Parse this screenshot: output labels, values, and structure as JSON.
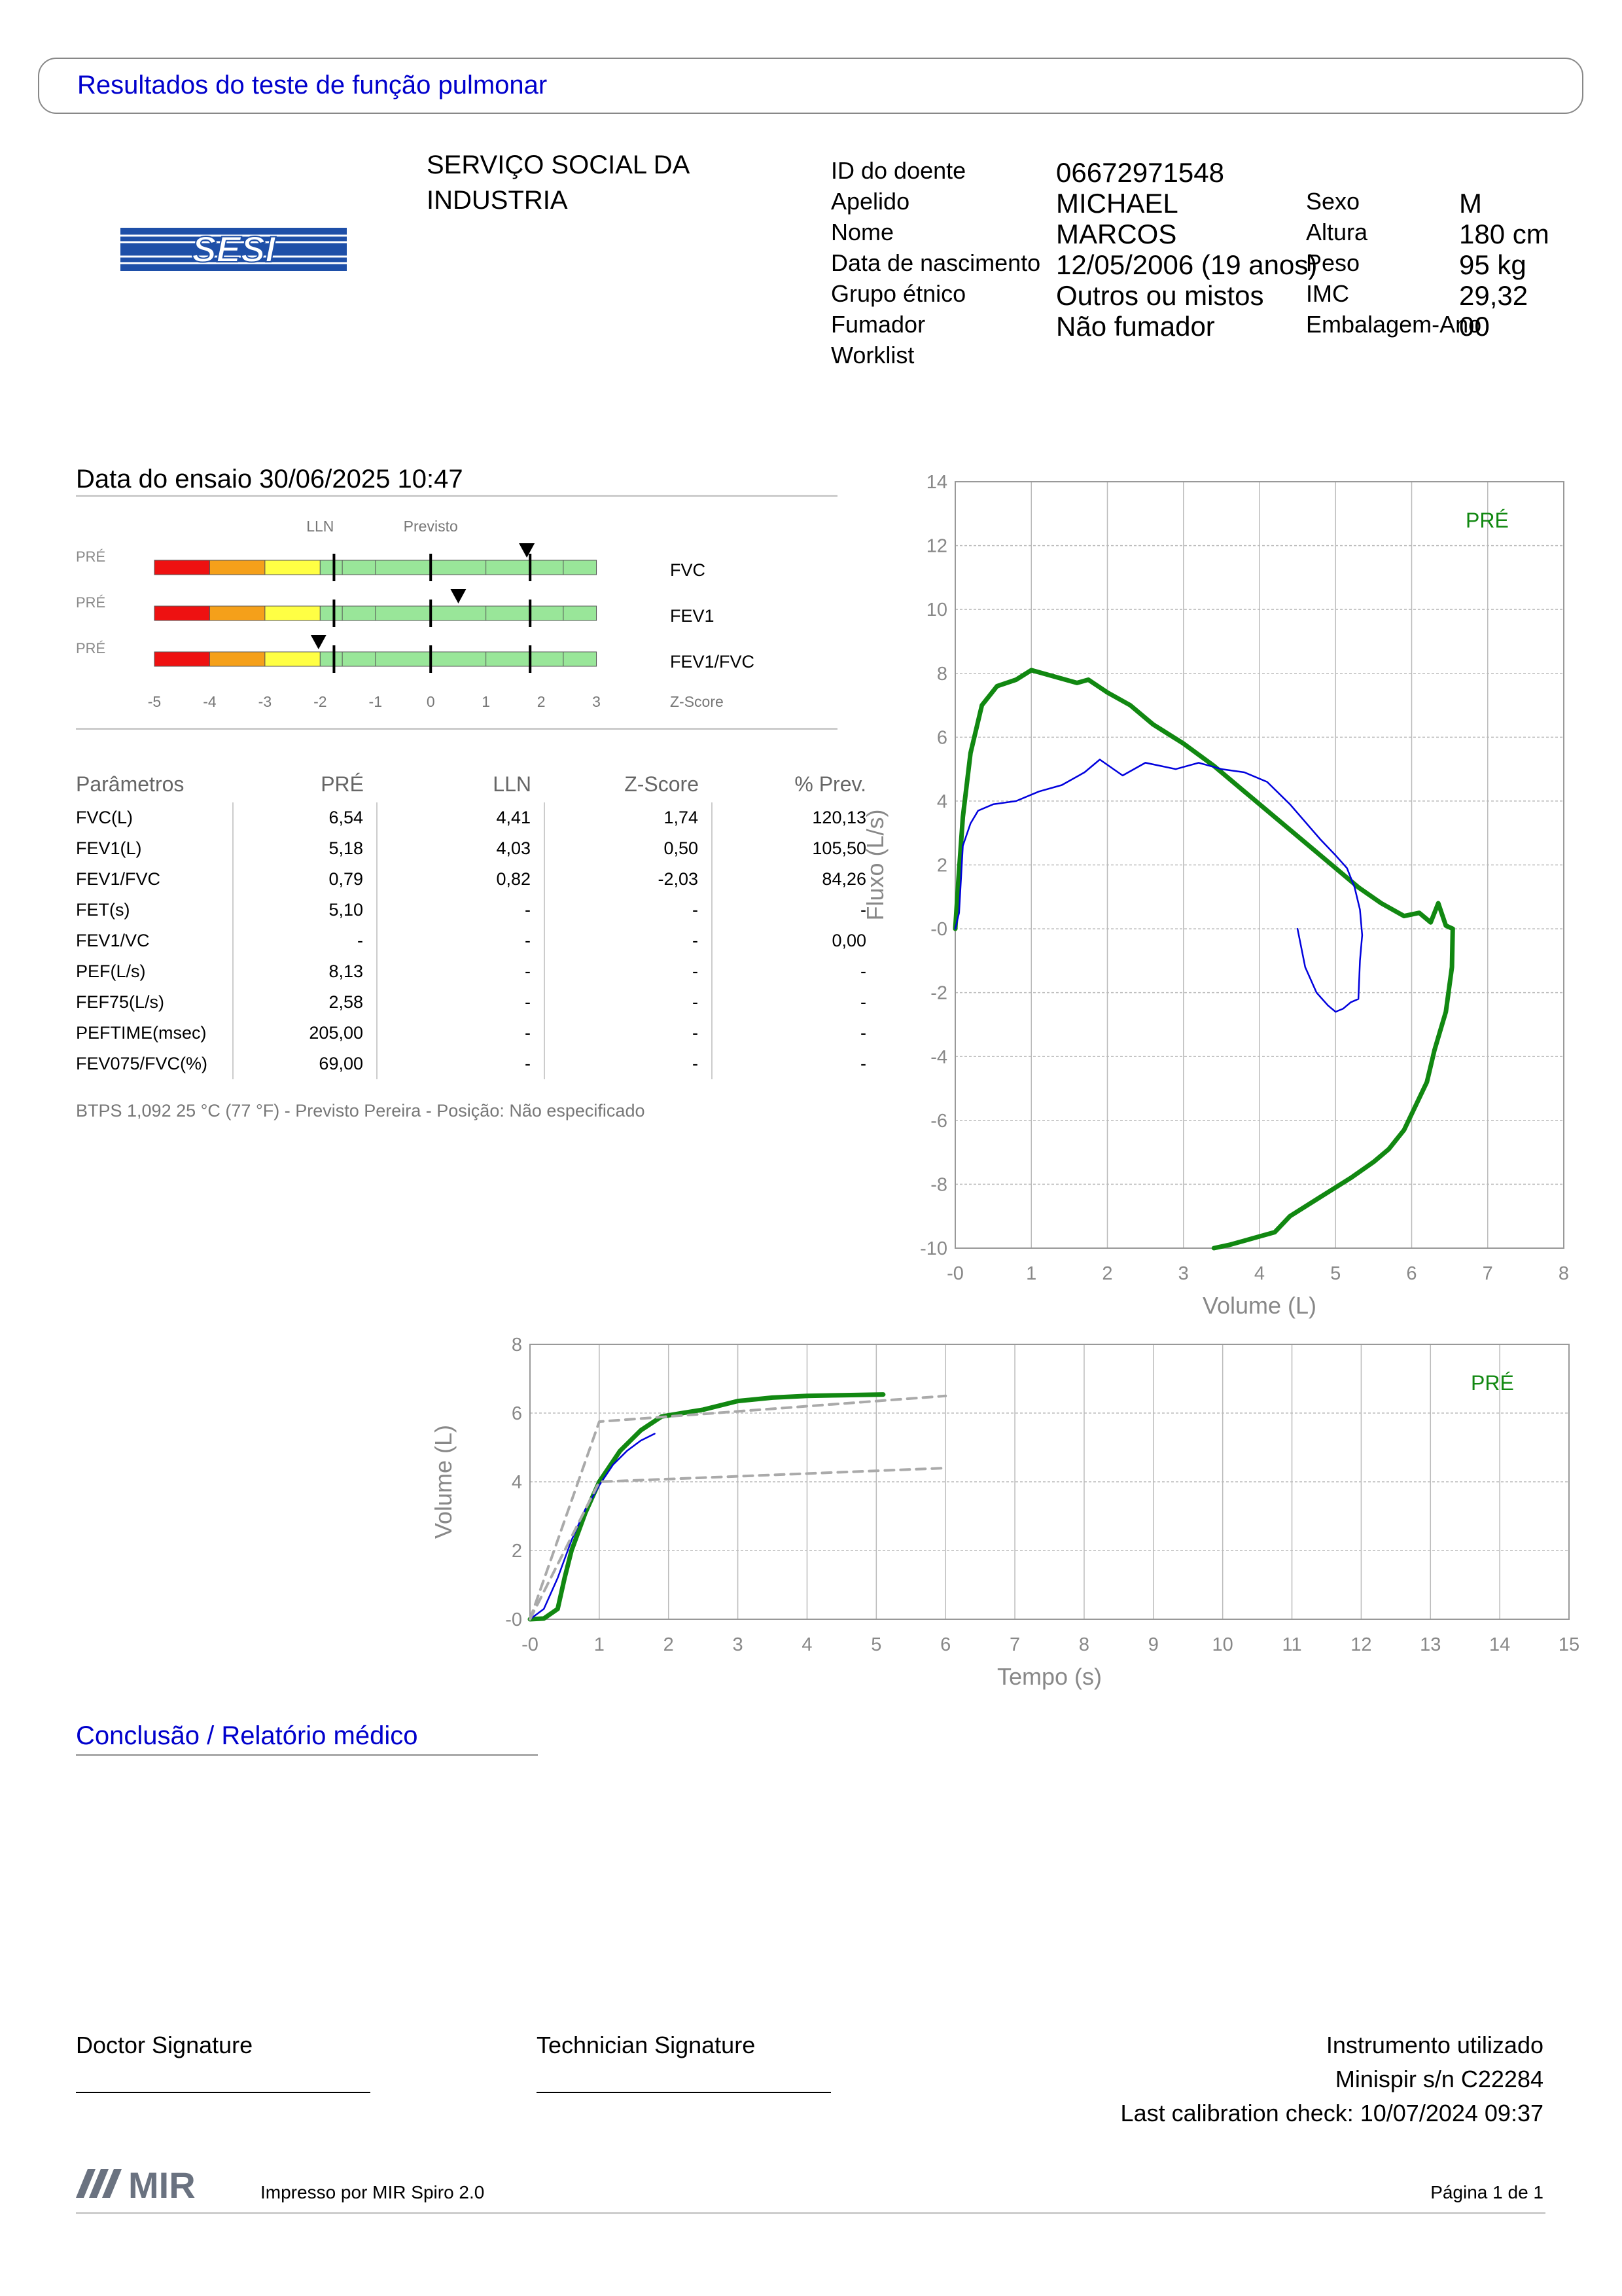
{
  "header": {
    "title": "Resultados do teste de função pulmonar"
  },
  "logo": {
    "text": "SESI"
  },
  "institution": {
    "line1": "SERVIÇO SOCIAL DA",
    "line2": "INDUSTRIA"
  },
  "patient": {
    "id_label": "ID do doente",
    "id": "06672971548",
    "surname_label": "Apelido",
    "surname": "MICHAEL",
    "name_label": "Nome",
    "name": "MARCOS",
    "dob_label": "Data de nascimento",
    "dob": "12/05/2006 (19 anos)",
    "ethnic_label": "Grupo étnico",
    "ethnic": "Outros ou mistos",
    "smoker_label": "Fumador",
    "smoker": "Não fumador",
    "worklist_label": "Worklist",
    "sex_label": "Sexo",
    "sex": "M",
    "height_label": "Altura",
    "height": "180 cm",
    "weight_label": "Peso",
    "weight": "95 kg",
    "bmi_label": "IMC",
    "bmi": "29,32",
    "pack_label": "Embalagem-Ano",
    "pack": "00"
  },
  "test": {
    "date_line": "Data do ensaio 30/06/2025 10:47"
  },
  "zscore_panel": {
    "lln_label": "LLN",
    "predicted_label": "Previsto",
    "row_prefix": "PRÉ",
    "rows": [
      {
        "name": "FVC",
        "z": 1.74
      },
      {
        "name": "FEV1",
        "z": 0.5
      },
      {
        "name": "FEV1/FVC",
        "z": -2.03
      }
    ],
    "ticks": [
      "-5",
      "-4",
      "-3",
      "-2",
      "-1",
      "0",
      "1",
      "2",
      "3"
    ],
    "axis_label": "Z-Score",
    "colors": {
      "red": "#ee1111",
      "orange": "#f5a01a",
      "yellow": "#ffff44",
      "green": "#99e699"
    }
  },
  "params_table": {
    "headers": [
      "Parâmetros",
      "PRÉ",
      "LLN",
      "Z-Score",
      "% Prev."
    ],
    "rows": [
      [
        "FVC(L)",
        "6,54",
        "4,41",
        "1,74",
        "120,13"
      ],
      [
        "FEV1(L)",
        "5,18",
        "4,03",
        "0,50",
        "105,50"
      ],
      [
        "FEV1/FVC",
        "0,79",
        "0,82",
        "-2,03",
        "84,26"
      ],
      [
        "FET(s)",
        "5,10",
        "-",
        "-",
        "-"
      ],
      [
        "FEV1/VC",
        "-",
        "-",
        "-",
        "0,00"
      ],
      [
        "PEF(L/s)",
        "8,13",
        "-",
        "-",
        "-"
      ],
      [
        "FEF75(L/s)",
        "2,58",
        "-",
        "-",
        "-"
      ],
      [
        "PEFTIME(msec)",
        "205,00",
        "-",
        "-",
        "-"
      ],
      [
        "FEV075/FVC(%)",
        "69,00",
        "-",
        "-",
        "-"
      ]
    ],
    "footnote": "BTPS 1,092 25 °C (77 °F) - Previsto Pereira - Posição: Não especificado"
  },
  "chart_data": [
    {
      "type": "line",
      "title": "",
      "xlabel": "Volume (L)",
      "ylabel": "Fluxo (L/s)",
      "xlim": [
        0,
        8
      ],
      "ylim": [
        -10,
        14
      ],
      "xticks": [
        "-0",
        "1",
        "2",
        "3",
        "4",
        "5",
        "6",
        "7",
        "8"
      ],
      "yticks": [
        "-10",
        "-8",
        "-6",
        "-4",
        "-2",
        "-0",
        "2",
        "4",
        "6",
        "8",
        "10",
        "12",
        "14"
      ],
      "legend": "PRÉ",
      "series": [
        {
          "name": "PRÉ",
          "color": "#118811",
          "x": [
            0,
            0.04,
            0.1,
            0.2,
            0.35,
            0.55,
            0.8,
            1.0,
            1.3,
            1.6,
            1.75,
            2.0,
            2.3,
            2.6,
            3.0,
            3.4,
            3.8,
            4.2,
            4.6,
            5.0,
            5.3,
            5.6,
            5.9,
            6.1,
            6.25,
            6.35,
            6.45,
            6.54,
            6.53,
            6.45,
            6.3,
            6.2,
            6.0,
            5.9,
            5.7,
            5.5,
            5.2,
            4.8,
            4.4,
            4.2,
            3.9,
            3.6,
            3.4
          ],
          "y": [
            0,
            1.5,
            3.5,
            5.5,
            7.0,
            7.6,
            7.8,
            8.1,
            7.9,
            7.7,
            7.8,
            7.4,
            7.0,
            6.4,
            5.8,
            5.1,
            4.3,
            3.5,
            2.7,
            1.9,
            1.3,
            0.8,
            0.4,
            0.5,
            0.2,
            0.8,
            0.1,
            0,
            -1.2,
            -2.6,
            -3.8,
            -4.8,
            -5.8,
            -6.3,
            -6.9,
            -7.3,
            -7.8,
            -8.4,
            -9.0,
            -9.5,
            -9.7,
            -9.9,
            -10
          ]
        },
        {
          "name": "PRÉ-2",
          "color": "#0000dd",
          "x": [
            0,
            0.05,
            0.1,
            0.2,
            0.3,
            0.5,
            0.8,
            1.1,
            1.4,
            1.7,
            1.9,
            2.2,
            2.5,
            2.9,
            3.2,
            3.5,
            3.8,
            4.1,
            4.4,
            4.8,
            5.0,
            5.15,
            5.25,
            5.32,
            5.35,
            5.32,
            5.3,
            5.2,
            5.1,
            5.0,
            4.9,
            4.75,
            4.6,
            4.5
          ],
          "y": [
            0,
            0.5,
            2.6,
            3.3,
            3.7,
            3.9,
            4.0,
            4.3,
            4.5,
            4.9,
            5.3,
            4.8,
            5.2,
            5.0,
            5.2,
            5.0,
            4.9,
            4.6,
            3.9,
            2.8,
            2.3,
            1.9,
            1.3,
            0.6,
            -0.2,
            -1.0,
            -2.2,
            -2.3,
            -2.5,
            -2.6,
            -2.4,
            -2.0,
            -1.2,
            0
          ]
        }
      ]
    },
    {
      "type": "line",
      "title": "",
      "xlabel": "Tempo (s)",
      "ylabel": "Volume (L)",
      "xlim": [
        0,
        15
      ],
      "ylim": [
        0,
        8
      ],
      "xticks": [
        "-0",
        "1",
        "2",
        "3",
        "4",
        "5",
        "6",
        "7",
        "8",
        "9",
        "10",
        "11",
        "12",
        "13",
        "14",
        "15"
      ],
      "yticks": [
        "-0",
        "2",
        "4",
        "6",
        "8"
      ],
      "legend": "PRÉ",
      "series": [
        {
          "name": "PRÉ",
          "color": "#118811",
          "x": [
            0,
            0.2,
            0.4,
            0.5,
            0.6,
            0.8,
            1.0,
            1.3,
            1.6,
            1.9,
            2.2,
            2.5,
            3.0,
            3.5,
            4.0,
            4.5,
            5.1
          ],
          "y": [
            0,
            0.02,
            0.3,
            1.2,
            2.0,
            3.1,
            4.0,
            4.9,
            5.5,
            5.9,
            6.0,
            6.1,
            6.35,
            6.45,
            6.5,
            6.52,
            6.54
          ]
        },
        {
          "name": "PRÉ-2",
          "color": "#0000dd",
          "x": [
            0,
            0.2,
            0.4,
            0.6,
            0.8,
            1.0,
            1.2,
            1.4,
            1.6,
            1.8
          ],
          "y": [
            0,
            0.3,
            1.2,
            2.3,
            3.2,
            3.9,
            4.5,
            4.9,
            5.2,
            5.4
          ]
        },
        {
          "name": "extrap-1",
          "color": "#aaaaaa",
          "dashed": true,
          "x": [
            0,
            1.0,
            6.0
          ],
          "y": [
            0,
            5.75,
            6.5
          ]
        },
        {
          "name": "extrap-2",
          "color": "#aaaaaa",
          "dashed": true,
          "x": [
            0,
            1.0,
            6.0
          ],
          "y": [
            0,
            4.0,
            4.4
          ]
        }
      ]
    }
  ],
  "conclusion": {
    "title": "Conclusão / Relatório médico"
  },
  "signatures": {
    "doctor": "Doctor Signature",
    "technician": "Technician Signature"
  },
  "instrument": {
    "label": "Instrumento utilizado",
    "device": "Minispir s/n C22284",
    "calibration": "Last calibration check: 10/07/2024 09:37"
  },
  "footer": {
    "logo": "MIR",
    "printed_by": "Impresso por MIR Spiro 2.0",
    "page": "Página 1 de 1"
  }
}
